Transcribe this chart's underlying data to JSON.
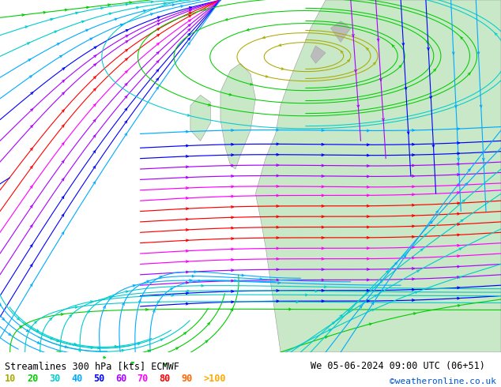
{
  "title_left": "Streamlines 300 hPa [kts] ECMWF",
  "title_right": "We 05-06-2024 09:00 UTC (06+51)",
  "watermark": "©weatheronline.co.uk",
  "legend_values": [
    "10",
    "20",
    "30",
    "40",
    "50",
    "60",
    "70",
    "80",
    "90",
    ">100"
  ],
  "legend_colors": [
    "#aaaa00",
    "#00cc00",
    "#00cccc",
    "#00aaff",
    "#0000ff",
    "#aa00ff",
    "#ff00ff",
    "#ff0000",
    "#ff6600",
    "#ffaa00"
  ],
  "bg_color": "#d0d0d0",
  "land_color": "#c8e8c8",
  "fig_width": 6.34,
  "fig_height": 4.9,
  "dpi": 100,
  "speed_thresholds": [
    10,
    20,
    30,
    40,
    50,
    60,
    70,
    80,
    90,
    100
  ]
}
